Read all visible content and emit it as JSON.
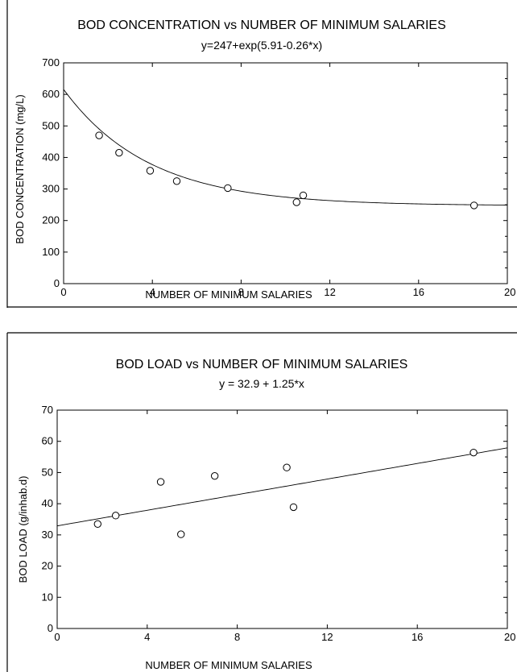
{
  "chart_data": [
    {
      "type": "scatter",
      "title": "BOD CONCENTRATION vs NUMBER OF MINIMUM SALARIES",
      "subtitle": "y=247+exp(5.91-0.26*x)",
      "xlabel": "NUMBER OF MINIMUM SALARIES",
      "ylabel": "BOD CONCENTRATION (mg/L)",
      "xlim": [
        0,
        20
      ],
      "ylim": [
        0,
        700
      ],
      "xticks": [
        0,
        4,
        8,
        12,
        16,
        20
      ],
      "yticks": [
        0,
        100,
        200,
        300,
        400,
        500,
        600,
        700
      ],
      "grid": false,
      "fit": {
        "type": "exponential",
        "a": 247,
        "b": 5.91,
        "c": -0.26
      },
      "series": [
        {
          "x": [
            1.6,
            2.5,
            3.9,
            5.1,
            7.4,
            10.5,
            10.8,
            18.5
          ],
          "y": [
            470,
            415,
            358,
            325,
            303,
            258,
            280,
            248
          ]
        }
      ]
    },
    {
      "type": "scatter",
      "title": "BOD LOAD vs NUMBER OF MINIMUM SALARIES",
      "subtitle": "y = 32.9 + 1.25*x",
      "xlabel": "NUMBER OF MINIMUM SALARIES",
      "ylabel": "BOD LOAD (g/inhab.d)",
      "xlim": [
        0,
        20
      ],
      "ylim": [
        0,
        70
      ],
      "xticks": [
        0,
        4,
        8,
        12,
        16,
        20
      ],
      "yticks": [
        0,
        10,
        20,
        30,
        40,
        50,
        60,
        70
      ],
      "grid": false,
      "fit": {
        "type": "linear",
        "intercept": 32.9,
        "slope": 1.25
      },
      "series": [
        {
          "x": [
            1.8,
            2.6,
            4.6,
            5.5,
            7.0,
            10.2,
            10.5,
            18.5
          ],
          "y": [
            33.5,
            36.2,
            47.0,
            30.2,
            48.9,
            51.6,
            38.9,
            56.4
          ]
        }
      ]
    }
  ]
}
